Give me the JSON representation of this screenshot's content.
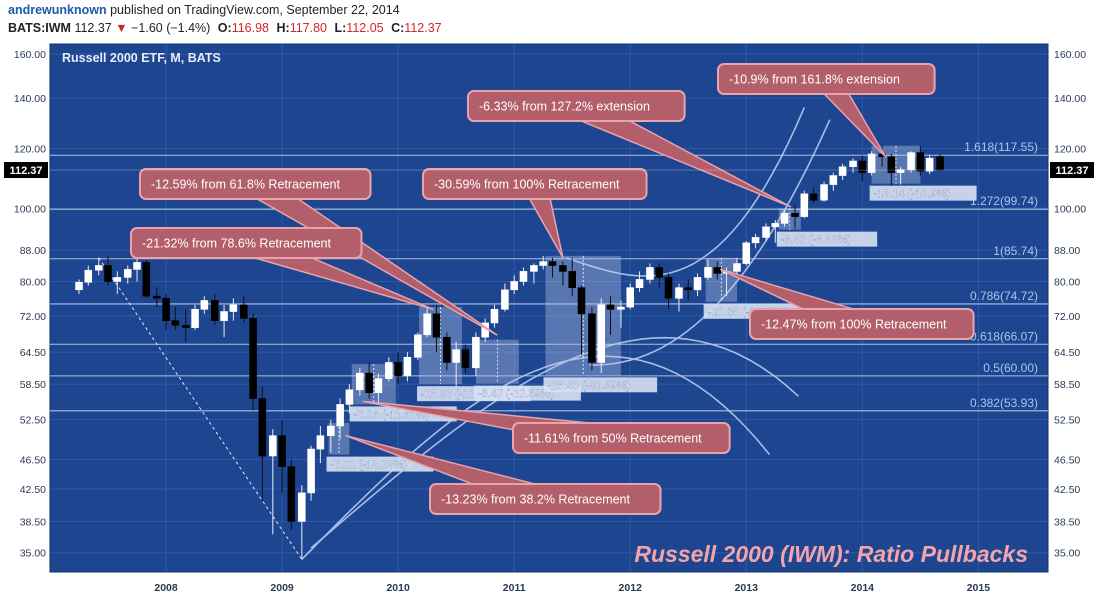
{
  "header": {
    "author": "andrewunknown",
    "published_text": "published on TradingView.com, September 22, 2014",
    "symbol": "BATS:IWM",
    "last": "112.37",
    "down_arrow": "▼",
    "change": "−1.60 (−1.4%)",
    "o_label": "O:",
    "o_value": "116.98",
    "h_label": "H:",
    "h_value": "117.80",
    "l_label": "L:",
    "l_value": "112.05",
    "c_label": "C:",
    "c_value": "112.37"
  },
  "colors": {
    "background": "#1e4590",
    "grid": "#2c5aa8",
    "fib_line": "#c6d5ee",
    "fib_label": "#a9c4ec",
    "candle_up": "#ffffff",
    "candle_down": "#000000",
    "callout_fill": "#b25f6b",
    "callout_border": "#e8a3ad",
    "box_fill": "#b8c8e8",
    "box_label": "#d4def2",
    "watermark": "#f4a3a9"
  },
  "chart_data": {
    "type": "candlestick",
    "title": "Russell 2000 ETF, M, BATS",
    "watermark": "Russell 2000 (IWM): Ratio Pullbacks",
    "y_scale": "log",
    "ylim": [
      33,
      165
    ],
    "xlim": [
      2007.0,
      2015.6
    ],
    "y_ticks": [
      "35.00",
      "38.50",
      "42.50",
      "46.50",
      "52.50",
      "58.50",
      "64.50",
      "72.00",
      "80.00",
      "88.00",
      "100.00",
      "120.00",
      "140.00",
      "160.00"
    ],
    "x_ticks": [
      "2008",
      "2009",
      "2010",
      "2011",
      "2012",
      "2013",
      "2014",
      "2015"
    ],
    "last_price_label": "112.37",
    "candles": [
      {
        "t": 2007.25,
        "o": 78.0,
        "h": 80.5,
        "l": 77.0,
        "c": 79.8
      },
      {
        "t": 2007.33,
        "o": 79.8,
        "h": 84.0,
        "l": 79.0,
        "c": 82.8
      },
      {
        "t": 2007.42,
        "o": 82.8,
        "h": 86.0,
        "l": 81.5,
        "c": 84.0
      },
      {
        "t": 2007.5,
        "o": 84.0,
        "h": 86.5,
        "l": 79.0,
        "c": 80.0
      },
      {
        "t": 2007.58,
        "o": 80.0,
        "h": 82.5,
        "l": 77.0,
        "c": 81.0
      },
      {
        "t": 2007.67,
        "o": 81.0,
        "h": 84.0,
        "l": 79.5,
        "c": 83.0
      },
      {
        "t": 2007.75,
        "o": 83.0,
        "h": 86.0,
        "l": 80.0,
        "c": 84.8
      },
      {
        "t": 2007.83,
        "o": 84.8,
        "h": 85.5,
        "l": 76.0,
        "c": 76.5
      },
      {
        "t": 2007.92,
        "o": 76.5,
        "h": 78.5,
        "l": 74.0,
        "c": 76.0
      },
      {
        "t": 2008.0,
        "o": 76.0,
        "h": 77.0,
        "l": 69.0,
        "c": 71.0
      },
      {
        "t": 2008.08,
        "o": 71.0,
        "h": 74.0,
        "l": 69.0,
        "c": 70.0
      },
      {
        "t": 2008.17,
        "o": 70.0,
        "h": 73.5,
        "l": 66.5,
        "c": 69.5
      },
      {
        "t": 2008.25,
        "o": 69.5,
        "h": 74.5,
        "l": 69.0,
        "c": 73.5
      },
      {
        "t": 2008.33,
        "o": 73.5,
        "h": 76.5,
        "l": 72.5,
        "c": 75.5
      },
      {
        "t": 2008.42,
        "o": 75.5,
        "h": 77.0,
        "l": 70.0,
        "c": 71.0
      },
      {
        "t": 2008.5,
        "o": 71.0,
        "h": 74.5,
        "l": 67.5,
        "c": 73.0
      },
      {
        "t": 2008.58,
        "o": 73.0,
        "h": 76.0,
        "l": 71.0,
        "c": 74.5
      },
      {
        "t": 2008.67,
        "o": 74.5,
        "h": 76.5,
        "l": 70.5,
        "c": 71.5
      },
      {
        "t": 2008.75,
        "o": 71.5,
        "h": 72.5,
        "l": 54.0,
        "c": 56.0
      },
      {
        "t": 2008.83,
        "o": 56.0,
        "h": 58.0,
        "l": 41.0,
        "c": 47.0
      },
      {
        "t": 2008.92,
        "o": 47.0,
        "h": 51.0,
        "l": 37.0,
        "c": 50.0
      },
      {
        "t": 2009.0,
        "o": 50.0,
        "h": 52.5,
        "l": 42.0,
        "c": 45.5
      },
      {
        "t": 2009.08,
        "o": 45.5,
        "h": 46.5,
        "l": 37.5,
        "c": 38.5
      },
      {
        "t": 2009.17,
        "o": 38.5,
        "h": 43.0,
        "l": 34.3,
        "c": 42.0
      },
      {
        "t": 2009.25,
        "o": 42.0,
        "h": 48.5,
        "l": 41.0,
        "c": 48.0
      },
      {
        "t": 2009.33,
        "o": 48.0,
        "h": 51.5,
        "l": 46.0,
        "c": 50.0
      },
      {
        "t": 2009.42,
        "o": 50.0,
        "h": 52.5,
        "l": 47.5,
        "c": 51.5
      },
      {
        "t": 2009.5,
        "o": 51.5,
        "h": 56.0,
        "l": 49.5,
        "c": 55.0
      },
      {
        "t": 2009.58,
        "o": 55.0,
        "h": 58.5,
        "l": 53.5,
        "c": 57.5
      },
      {
        "t": 2009.67,
        "o": 57.5,
        "h": 61.5,
        "l": 56.5,
        "c": 60.5
      },
      {
        "t": 2009.75,
        "o": 60.5,
        "h": 62.5,
        "l": 56.0,
        "c": 57.0
      },
      {
        "t": 2009.83,
        "o": 57.0,
        "h": 60.5,
        "l": 55.0,
        "c": 59.5
      },
      {
        "t": 2009.92,
        "o": 59.5,
        "h": 63.5,
        "l": 59.0,
        "c": 62.5
      },
      {
        "t": 2010.0,
        "o": 62.5,
        "h": 64.5,
        "l": 58.5,
        "c": 60.0
      },
      {
        "t": 2010.08,
        "o": 60.0,
        "h": 64.5,
        "l": 59.0,
        "c": 63.5
      },
      {
        "t": 2010.17,
        "o": 63.5,
        "h": 68.5,
        "l": 63.0,
        "c": 68.0
      },
      {
        "t": 2010.25,
        "o": 68.0,
        "h": 74.0,
        "l": 67.5,
        "c": 72.5
      },
      {
        "t": 2010.33,
        "o": 72.5,
        "h": 74.5,
        "l": 64.5,
        "c": 67.5
      },
      {
        "t": 2010.42,
        "o": 67.5,
        "h": 68.5,
        "l": 61.0,
        "c": 62.5
      },
      {
        "t": 2010.5,
        "o": 62.5,
        "h": 66.5,
        "l": 58.0,
        "c": 65.0
      },
      {
        "t": 2010.58,
        "o": 65.0,
        "h": 66.0,
        "l": 60.5,
        "c": 61.5
      },
      {
        "t": 2010.67,
        "o": 61.5,
        "h": 68.5,
        "l": 60.0,
        "c": 67.5
      },
      {
        "t": 2010.75,
        "o": 67.5,
        "h": 71.5,
        "l": 66.5,
        "c": 70.5
      },
      {
        "t": 2010.83,
        "o": 70.5,
        "h": 74.5,
        "l": 69.5,
        "c": 73.5
      },
      {
        "t": 2010.92,
        "o": 73.5,
        "h": 79.5,
        "l": 73.0,
        "c": 78.0
      },
      {
        "t": 2011.0,
        "o": 78.0,
        "h": 81.5,
        "l": 77.0,
        "c": 80.0
      },
      {
        "t": 2011.08,
        "o": 80.0,
        "h": 83.5,
        "l": 79.0,
        "c": 82.5
      },
      {
        "t": 2011.17,
        "o": 82.5,
        "h": 84.5,
        "l": 79.5,
        "c": 84.0
      },
      {
        "t": 2011.25,
        "o": 84.0,
        "h": 86.5,
        "l": 83.0,
        "c": 85.0
      },
      {
        "t": 2011.33,
        "o": 85.0,
        "h": 86.0,
        "l": 81.0,
        "c": 84.0
      },
      {
        "t": 2011.42,
        "o": 84.0,
        "h": 85.0,
        "l": 79.0,
        "c": 82.5
      },
      {
        "t": 2011.5,
        "o": 82.5,
        "h": 86.0,
        "l": 76.5,
        "c": 78.5
      },
      {
        "t": 2011.58,
        "o": 78.5,
        "h": 79.0,
        "l": 64.0,
        "c": 72.5
      },
      {
        "t": 2011.67,
        "o": 72.5,
        "h": 74.0,
        "l": 61.0,
        "c": 62.5
      },
      {
        "t": 2011.75,
        "o": 62.5,
        "h": 76.0,
        "l": 60.5,
        "c": 74.5
      },
      {
        "t": 2011.83,
        "o": 74.5,
        "h": 76.5,
        "l": 68.0,
        "c": 73.5
      },
      {
        "t": 2011.92,
        "o": 73.5,
        "h": 75.5,
        "l": 69.5,
        "c": 74.0
      },
      {
        "t": 2012.0,
        "o": 74.0,
        "h": 79.5,
        "l": 73.5,
        "c": 78.5
      },
      {
        "t": 2012.08,
        "o": 78.5,
        "h": 82.5,
        "l": 77.5,
        "c": 80.5
      },
      {
        "t": 2012.17,
        "o": 80.5,
        "h": 84.5,
        "l": 79.5,
        "c": 83.5
      },
      {
        "t": 2012.25,
        "o": 83.5,
        "h": 84.5,
        "l": 78.5,
        "c": 81.0
      },
      {
        "t": 2012.33,
        "o": 81.0,
        "h": 82.0,
        "l": 73.5,
        "c": 76.0
      },
      {
        "t": 2012.42,
        "o": 76.0,
        "h": 79.5,
        "l": 73.0,
        "c": 78.5
      },
      {
        "t": 2012.5,
        "o": 78.5,
        "h": 80.5,
        "l": 75.5,
        "c": 78.0
      },
      {
        "t": 2012.58,
        "o": 78.0,
        "h": 82.0,
        "l": 76.5,
        "c": 81.0
      },
      {
        "t": 2012.67,
        "o": 81.0,
        "h": 85.5,
        "l": 80.5,
        "c": 83.5
      },
      {
        "t": 2012.75,
        "o": 83.5,
        "h": 85.0,
        "l": 80.5,
        "c": 82.0
      },
      {
        "t": 2012.83,
        "o": 82.0,
        "h": 83.5,
        "l": 76.5,
        "c": 82.5
      },
      {
        "t": 2012.92,
        "o": 82.5,
        "h": 86.0,
        "l": 81.5,
        "c": 84.5
      },
      {
        "t": 2013.0,
        "o": 84.5,
        "h": 90.5,
        "l": 84.0,
        "c": 90.0
      },
      {
        "t": 2013.08,
        "o": 90.0,
        "h": 92.5,
        "l": 88.5,
        "c": 91.5
      },
      {
        "t": 2013.17,
        "o": 91.5,
        "h": 95.5,
        "l": 90.5,
        "c": 94.5
      },
      {
        "t": 2013.25,
        "o": 94.5,
        "h": 96.5,
        "l": 90.0,
        "c": 95.5
      },
      {
        "t": 2013.33,
        "o": 95.5,
        "h": 99.5,
        "l": 94.5,
        "c": 98.5
      },
      {
        "t": 2013.42,
        "o": 98.5,
        "h": 101.0,
        "l": 94.0,
        "c": 97.5
      },
      {
        "t": 2013.5,
        "o": 97.5,
        "h": 105.5,
        "l": 97.0,
        "c": 104.5
      },
      {
        "t": 2013.58,
        "o": 104.5,
        "h": 106.5,
        "l": 101.5,
        "c": 102.5
      },
      {
        "t": 2013.67,
        "o": 102.5,
        "h": 108.5,
        "l": 102.0,
        "c": 107.5
      },
      {
        "t": 2013.75,
        "o": 107.5,
        "h": 111.5,
        "l": 105.5,
        "c": 110.5
      },
      {
        "t": 2013.83,
        "o": 110.5,
        "h": 114.5,
        "l": 109.0,
        "c": 113.5
      },
      {
        "t": 2013.92,
        "o": 113.5,
        "h": 116.5,
        "l": 111.5,
        "c": 115.5
      },
      {
        "t": 2014.0,
        "o": 115.5,
        "h": 117.5,
        "l": 108.5,
        "c": 111.5
      },
      {
        "t": 2014.08,
        "o": 111.5,
        "h": 119.0,
        "l": 110.5,
        "c": 118.0
      },
      {
        "t": 2014.17,
        "o": 118.0,
        "h": 121.0,
        "l": 113.5,
        "c": 117.0
      },
      {
        "t": 2014.25,
        "o": 117.0,
        "h": 118.0,
        "l": 107.0,
        "c": 111.5
      },
      {
        "t": 2014.33,
        "o": 111.5,
        "h": 113.5,
        "l": 107.5,
        "c": 112.5
      },
      {
        "t": 2014.42,
        "o": 112.5,
        "h": 119.0,
        "l": 111.5,
        "c": 118.5
      },
      {
        "t": 2014.5,
        "o": 118.5,
        "h": 121.0,
        "l": 110.5,
        "c": 112.0
      },
      {
        "t": 2014.58,
        "o": 112.0,
        "h": 117.5,
        "l": 111.0,
        "c": 116.5
      },
      {
        "t": 2014.67,
        "o": 116.98,
        "h": 117.8,
        "l": 112.05,
        "c": 112.37
      }
    ],
    "fib_levels": [
      {
        "label": "1.618(117.55)",
        "value": 117.55
      },
      {
        "label": "1.272(99.74)",
        "value": 99.74
      },
      {
        "label": "1(85.74)",
        "value": 85.74
      },
      {
        "label": "0.786(74.72)",
        "value": 74.72
      },
      {
        "label": "0.618(66.07)",
        "value": 66.07
      },
      {
        "label": "0.5(60.00)",
        "value": 60.0
      },
      {
        "label": "0.382(53.93)",
        "value": 53.93
      }
    ],
    "pullback_boxes": [
      {
        "t0": 2009.4,
        "t1": 2009.58,
        "top": 52.0,
        "bottom": 47.2,
        "label": "-7.21 (-13.23%)"
      },
      {
        "t0": 2009.6,
        "t1": 2009.98,
        "top": 62.2,
        "bottom": 55.0,
        "label": "-7.26 (-11.61%)"
      },
      {
        "t0": 2010.18,
        "t1": 2010.55,
        "top": 74.0,
        "bottom": 58.5,
        "label": "-15.93 (-21.32%)"
      },
      {
        "t0": 2010.67,
        "t1": 2011.04,
        "top": 67.0,
        "bottom": 58.6,
        "label": "-8.47 (-12.59%)"
      },
      {
        "t0": 2011.27,
        "t1": 2011.92,
        "top": 86.5,
        "bottom": 60.1,
        "label": "-26.40 (-30.59%)"
      },
      {
        "t0": 2012.65,
        "t1": 2012.92,
        "top": 86.0,
        "bottom": 75.2,
        "label": "-10.85 (-12.47%)"
      },
      {
        "t0": 2013.28,
        "t1": 2013.47,
        "top": 100.0,
        "bottom": 93.7,
        "label": "-6.32 (-6.33%)"
      },
      {
        "t0": 2014.08,
        "t1": 2014.5,
        "top": 121.0,
        "bottom": 107.8,
        "label": "-13.14 (-10.9%)"
      }
    ],
    "callouts": [
      {
        "text": "-10.9% from 161.8% extension",
        "tip_t": 2014.2,
        "tip_y": 117.0
      },
      {
        "text": "-6.33% from 127.2% extension",
        "tip_t": 2013.38,
        "tip_y": 100.5
      },
      {
        "text": "-12.59% from 61.8% Retracement",
        "tip_t": 2010.85,
        "tip_y": 68.0
      },
      {
        "text": "-30.59% from 100% Retracement",
        "tip_t": 2011.42,
        "tip_y": 86.0
      },
      {
        "text": "-21.32% from 78.6% Retracement",
        "tip_t": 2010.3,
        "tip_y": 73.5
      },
      {
        "text": "-12.47% from 100% Retracement",
        "tip_t": 2012.78,
        "tip_y": 83.0
      },
      {
        "text": "-11.61% from 50% Retracement",
        "tip_t": 2009.7,
        "tip_y": 55.5
      },
      {
        "text": "-13.23% from 38.2% Retracement",
        "tip_t": 2009.55,
        "tip_y": 50.0
      }
    ],
    "trendline": [
      {
        "t": 2007.42,
        "v": 86.0
      },
      {
        "t": 2009.17,
        "v": 34.3
      }
    ]
  }
}
